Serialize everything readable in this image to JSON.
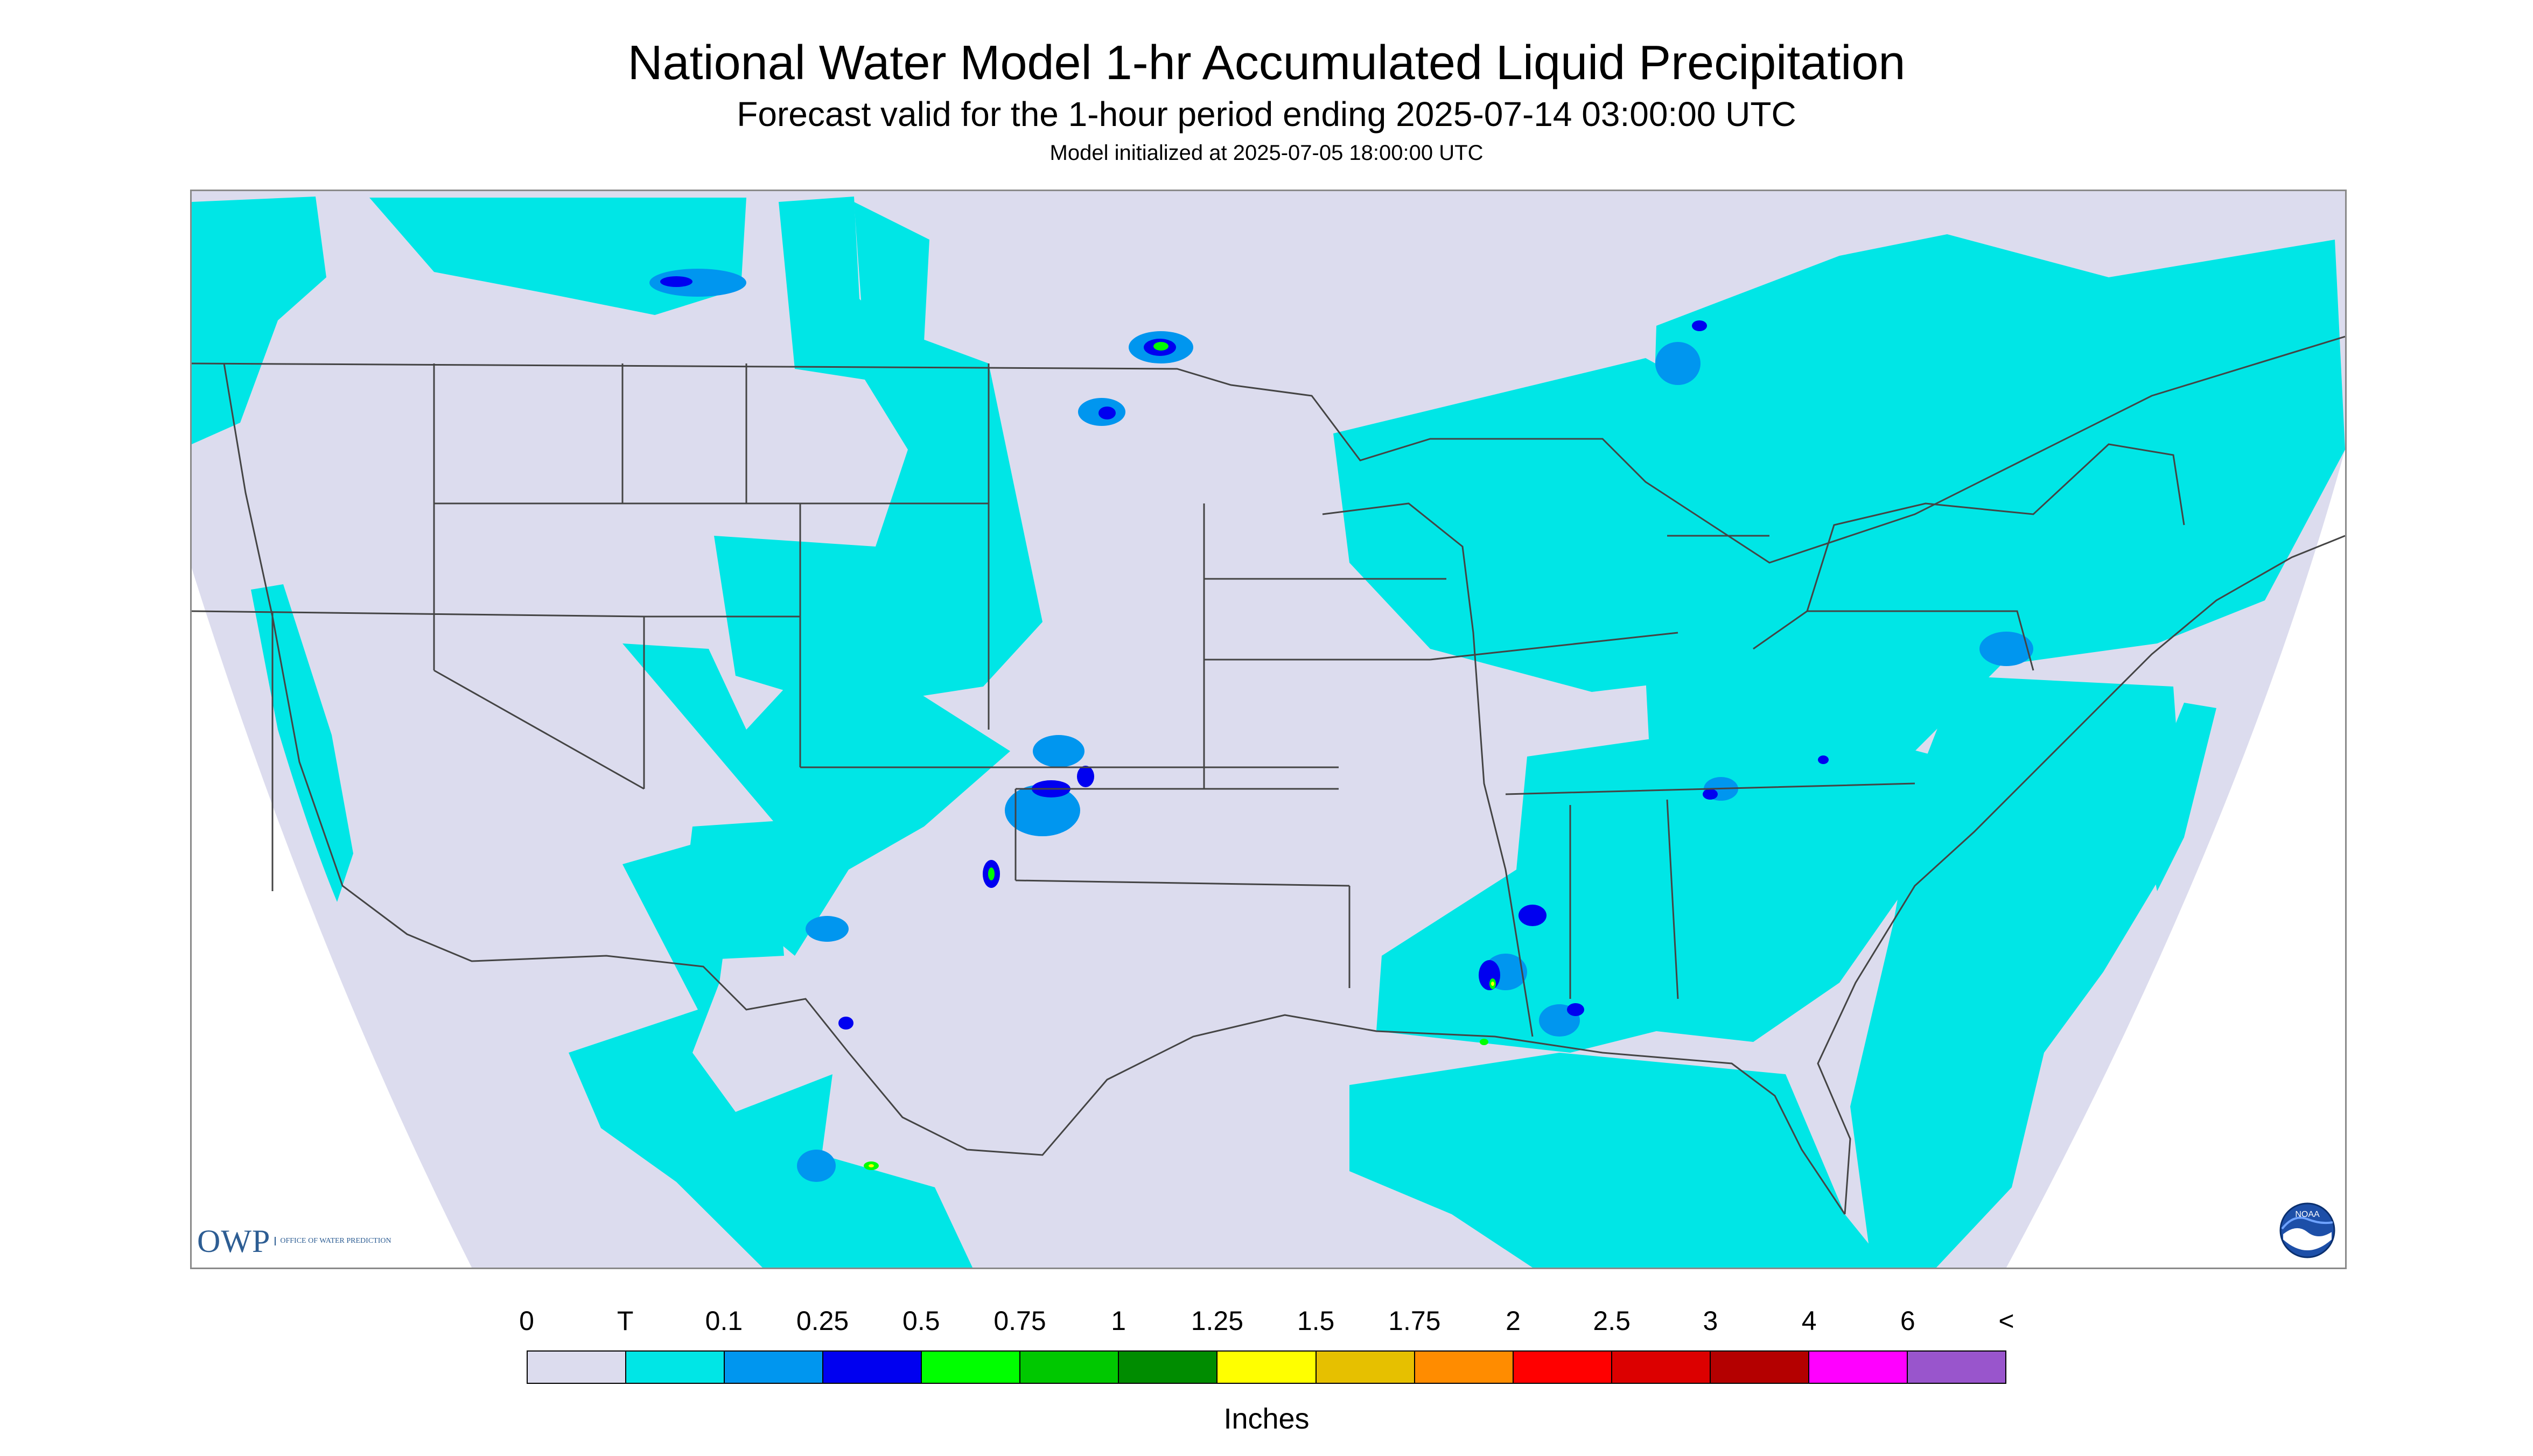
{
  "header": {
    "title": "National Water Model 1-hr Accumulated Liquid Precipitation",
    "subtitle": "Forecast valid for the 1-hour period ending 2025-07-14 03:00:00 UTC",
    "init_line": "Model initialized at 2025-07-05 18:00:00 UTC"
  },
  "map": {
    "background_color": "#dcdcee",
    "outside_domain_color": "#ffffff",
    "boundary_color": "#444444",
    "logos": {
      "owp_mark": "OWP",
      "owp_text": "Office of Water Prediction",
      "noaa_text": "NOAA"
    }
  },
  "legend": {
    "units": "Inches",
    "ticks": [
      "0",
      "T",
      "0.1",
      "0.25",
      "0.5",
      "0.75",
      "1",
      "1.25",
      "1.5",
      "1.75",
      "2",
      "2.5",
      "3",
      "4",
      "6",
      "<"
    ],
    "colors": [
      "#dcdcee",
      "#00e6e6",
      "#0096ef",
      "#0000f0",
      "#00ff00",
      "#00c800",
      "#008c00",
      "#ffff00",
      "#e6c000",
      "#ff8c00",
      "#ff0000",
      "#dc0000",
      "#b40000",
      "#ff00ff",
      "#9955cc"
    ]
  }
}
